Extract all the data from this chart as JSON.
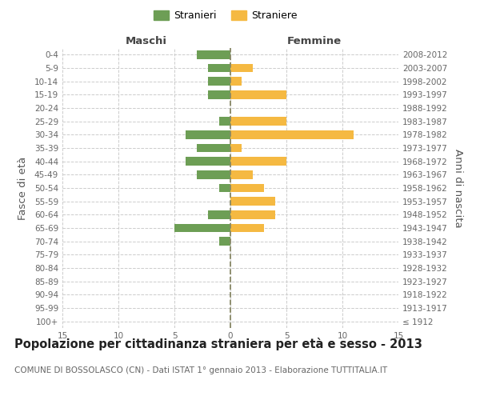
{
  "age_groups": [
    "100+",
    "95-99",
    "90-94",
    "85-89",
    "80-84",
    "75-79",
    "70-74",
    "65-69",
    "60-64",
    "55-59",
    "50-54",
    "45-49",
    "40-44",
    "35-39",
    "30-34",
    "25-29",
    "20-24",
    "15-19",
    "10-14",
    "5-9",
    "0-4"
  ],
  "birth_years": [
    "≤ 1912",
    "1913-1917",
    "1918-1922",
    "1923-1927",
    "1928-1932",
    "1933-1937",
    "1938-1942",
    "1943-1947",
    "1948-1952",
    "1953-1957",
    "1958-1962",
    "1963-1967",
    "1968-1972",
    "1973-1977",
    "1978-1982",
    "1983-1987",
    "1988-1992",
    "1993-1997",
    "1998-2002",
    "2003-2007",
    "2008-2012"
  ],
  "males": [
    0,
    0,
    0,
    0,
    0,
    0,
    1,
    5,
    2,
    0,
    1,
    3,
    4,
    3,
    4,
    1,
    0,
    2,
    2,
    2,
    3
  ],
  "females": [
    0,
    0,
    0,
    0,
    0,
    0,
    0,
    3,
    4,
    4,
    3,
    2,
    5,
    1,
    11,
    5,
    0,
    5,
    1,
    2,
    0
  ],
  "male_color": "#6d9e55",
  "female_color": "#f5b942",
  "bg_color": "#ffffff",
  "grid_color": "#cccccc",
  "dashed_line_color": "#888866",
  "title": "Popolazione per cittadinanza straniera per età e sesso - 2013",
  "subtitle": "COMUNE DI BOSSOLASCO (CN) - Dati ISTAT 1° gennaio 2013 - Elaborazione TUTTITALIA.IT",
  "xlabel_left": "Maschi",
  "xlabel_right": "Femmine",
  "ylabel_left": "Fasce di età",
  "ylabel_right": "Anni di nascita",
  "legend_males": "Stranieri",
  "legend_females": "Straniere",
  "xlim": 15,
  "bar_height": 0.65,
  "title_fontsize": 10.5,
  "subtitle_fontsize": 7.5,
  "tick_fontsize": 7.5,
  "label_fontsize": 9.5
}
